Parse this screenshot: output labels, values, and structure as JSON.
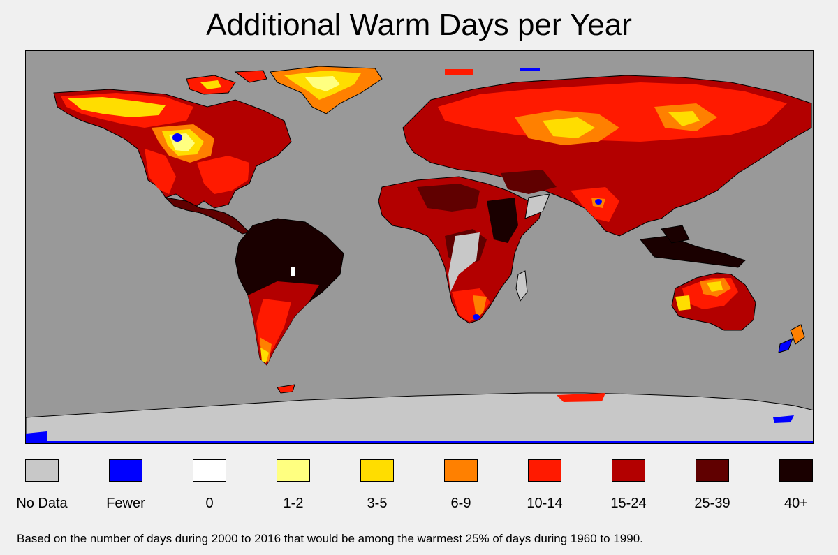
{
  "title": "Additional Warm Days per Year",
  "caption": "Based on the number of days during 2000 to 2016 that would be among the warmest 25% of days during 1960 to 1990.",
  "colors": {
    "ocean": "#999999",
    "land_outline": "#000000"
  },
  "legend": [
    {
      "label": "No Data",
      "color": "#c8c8c8"
    },
    {
      "label": "Fewer",
      "color": "#0000ff"
    },
    {
      "label": "0",
      "color": "#ffffff"
    },
    {
      "label": "1-2",
      "color": "#ffff80"
    },
    {
      "label": "3-5",
      "color": "#ffdd00"
    },
    {
      "label": "6-9",
      "color": "#ff8000"
    },
    {
      "label": "10-14",
      "color": "#ff1a00"
    },
    {
      "label": "15-24",
      "color": "#b30000"
    },
    {
      "label": "25-39",
      "color": "#600000"
    },
    {
      "label": "40+",
      "color": "#1a0000"
    }
  ]
}
